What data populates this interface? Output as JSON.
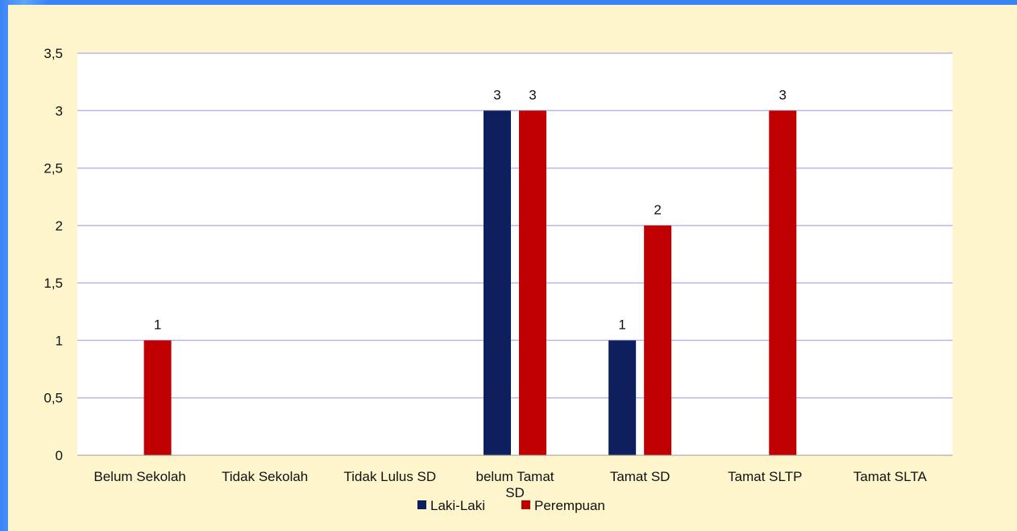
{
  "chart_data": {
    "type": "bar",
    "title": "",
    "xlabel": "",
    "ylabel": "",
    "ylim": [
      0,
      3.5
    ],
    "yticks": [
      "0",
      "0,5",
      "1",
      "1,5",
      "2",
      "2,5",
      "3",
      "3,5"
    ],
    "categories": [
      "Belum Sekolah",
      "Tidak Sekolah",
      "Tidak Lulus SD",
      "belum Tamat SD",
      "Tamat SD",
      "Tamat SLTP",
      "Tamat SLTA"
    ],
    "series": [
      {
        "name": "Laki-Laki",
        "color": "#0d1f5c",
        "values": [
          0,
          0,
          0,
          3,
          1,
          0,
          0
        ]
      },
      {
        "name": "Perempuan",
        "color": "#c00000",
        "values": [
          1,
          0,
          0,
          3,
          2,
          3,
          0
        ]
      }
    ],
    "grid": true,
    "legend": "bottom"
  }
}
